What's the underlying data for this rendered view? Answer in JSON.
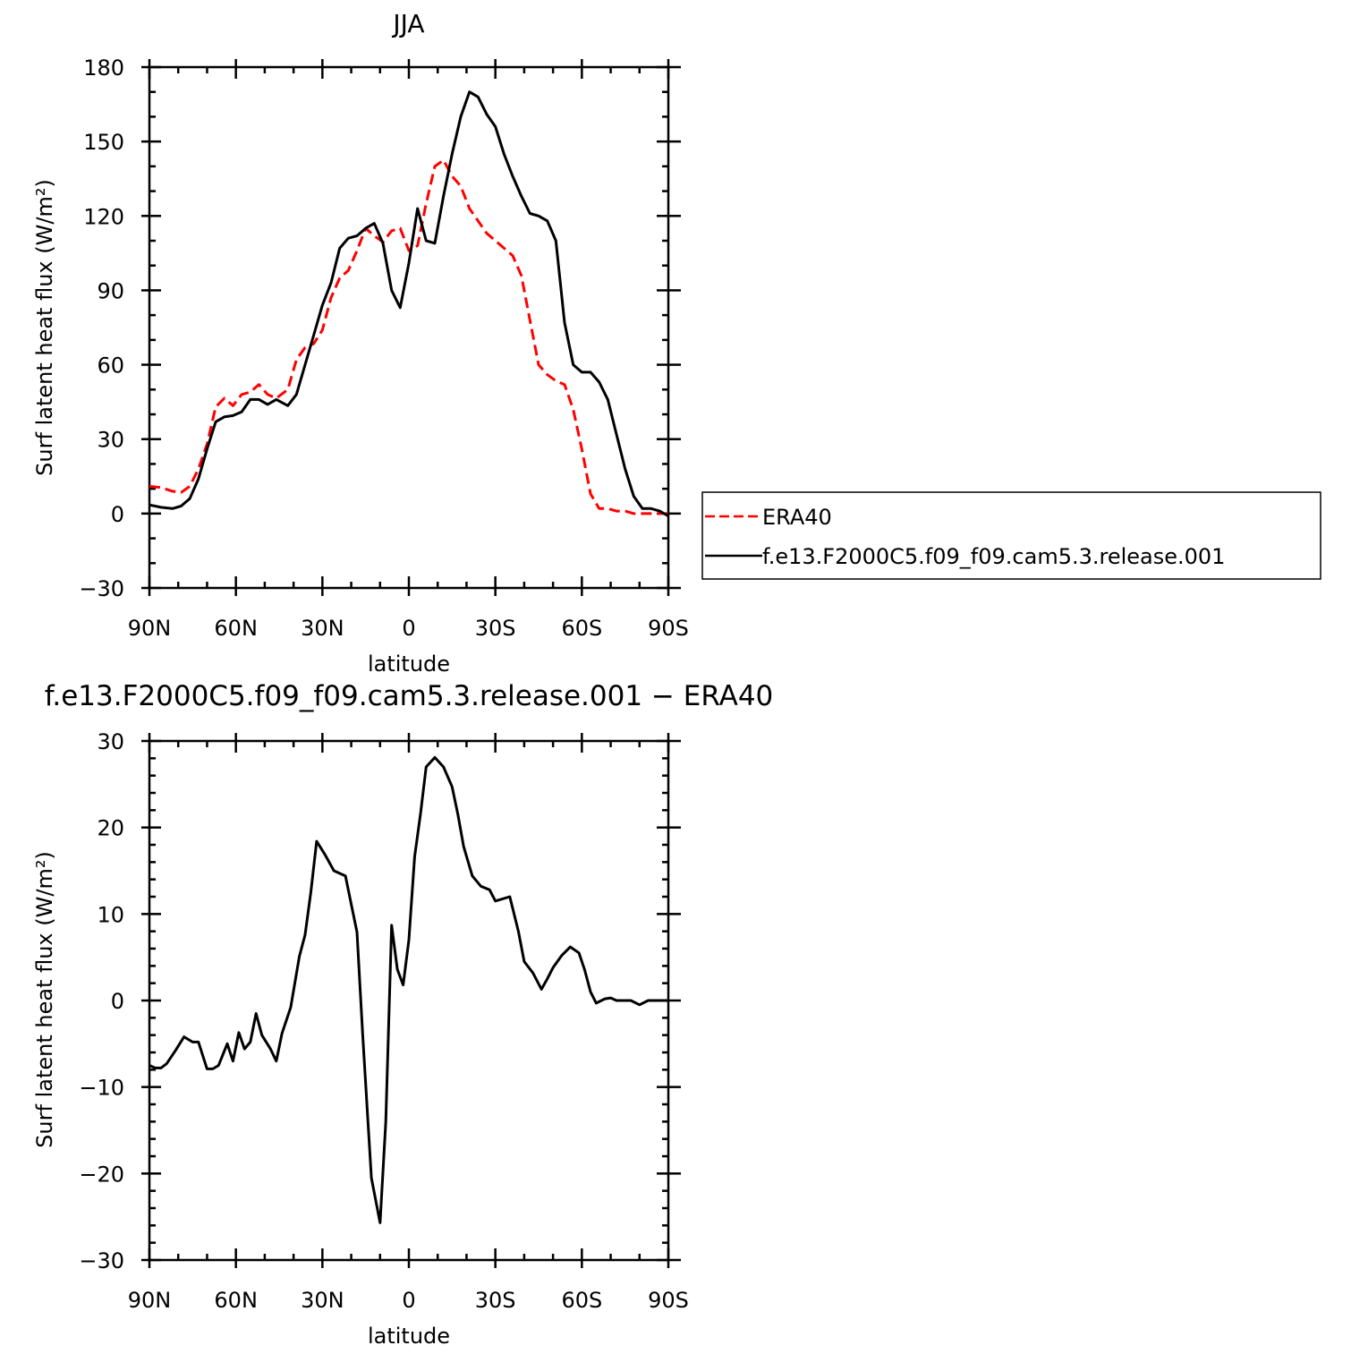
{
  "chart_data": [
    {
      "type": "line",
      "title": "JJA",
      "xlabel": "latitude",
      "ylabel": "Surf latent heat flux (W/m²)",
      "xlim": [
        90,
        -90
      ],
      "ylim": [
        -30,
        180
      ],
      "xticks": [
        90,
        60,
        30,
        0,
        -30,
        -60,
        -90
      ],
      "xtick_labels": [
        "90N",
        "60N",
        "30N",
        "0",
        "30S",
        "60S",
        "90S"
      ],
      "yticks": [
        -30,
        0,
        30,
        60,
        90,
        120,
        150,
        180
      ],
      "ytick_labels": [
        "−30",
        "0",
        "30",
        "60",
        "90",
        "120",
        "150",
        "180"
      ],
      "legend_position": "right",
      "series": [
        {
          "name": "ERA40",
          "color": "#ff0000",
          "dash": "dashed",
          "x": [
            90,
            86,
            82,
            79,
            76,
            73,
            70,
            67,
            64,
            61,
            58,
            55,
            52,
            49,
            46,
            42,
            39,
            36,
            33,
            30,
            27,
            24,
            21,
            18,
            15,
            12,
            9,
            6,
            3,
            0,
            -3,
            -6,
            -9,
            -12,
            -15,
            -18,
            -21,
            -24,
            -27,
            -30,
            -33,
            -36,
            -39,
            -42,
            -45,
            -48,
            -51,
            -54,
            -57,
            -60,
            -63,
            -66,
            -69,
            -72,
            -75,
            -78,
            -81,
            -84,
            -87,
            -90
          ],
          "y": [
            11,
            10.5,
            9,
            8.5,
            11,
            18,
            28,
            43,
            46.5,
            43.5,
            48,
            49,
            52,
            48,
            46.5,
            50,
            62,
            67,
            68.5,
            74,
            87,
            95,
            98,
            106,
            115,
            112,
            109.5,
            114,
            115,
            106,
            108,
            125,
            140,
            142.5,
            136,
            132,
            123,
            118,
            113,
            110,
            107,
            104,
            96,
            78,
            60,
            56,
            53.5,
            52,
            42,
            26,
            8,
            2,
            2,
            1,
            1,
            0,
            0,
            0,
            0,
            0
          ]
        },
        {
          "name": "f.e13.F2000C5.f09_f09.cam5.3.release.001",
          "color": "#000000",
          "dash": "solid",
          "x": [
            90,
            86,
            82,
            79,
            76,
            73,
            70,
            67,
            64,
            61,
            58,
            55,
            52,
            49,
            46,
            42,
            39,
            36,
            33,
            30,
            27,
            24,
            21,
            18,
            15,
            12,
            9,
            6,
            3,
            0,
            -3,
            -6,
            -9,
            -12,
            -15,
            -18,
            -21,
            -24,
            -27,
            -30,
            -33,
            -36,
            -39,
            -42,
            -45,
            -48,
            -51,
            -54,
            -57,
            -60,
            -63,
            -66,
            -69,
            -72,
            -75,
            -78,
            -81,
            -84,
            -87,
            -90
          ],
          "y": [
            3.5,
            2.5,
            2,
            3,
            6,
            14,
            26,
            37,
            39,
            39.5,
            41,
            46,
            46,
            44,
            46,
            43.5,
            48,
            60,
            72,
            84,
            93,
            107,
            111,
            112,
            115,
            117,
            109,
            90,
            83,
            101,
            123,
            110,
            109,
            128,
            145,
            160,
            170,
            168,
            161,
            156,
            145,
            136,
            128,
            121,
            120,
            118,
            110,
            77,
            60,
            57,
            57,
            53,
            46,
            32,
            18,
            7,
            2,
            2,
            1,
            -1
          ]
        }
      ]
    },
    {
      "type": "line",
      "title": "f.e13.F2000C5.f09_f09.cam5.3.release.001 − ERA40",
      "xlabel": "latitude",
      "ylabel": "Surf latent heat flux (W/m²)",
      "xlim": [
        90,
        -90
      ],
      "ylim": [
        -30,
        30
      ],
      "xticks": [
        90,
        60,
        30,
        0,
        -30,
        -60,
        -90
      ],
      "xtick_labels": [
        "90N",
        "60N",
        "30N",
        "0",
        "30S",
        "60S",
        "90S"
      ],
      "yticks": [
        -30,
        -20,
        -10,
        0,
        10,
        20,
        30
      ],
      "ytick_labels": [
        "−30",
        "−20",
        "−10",
        "0",
        "10",
        "20",
        "30"
      ],
      "series": [
        {
          "color": "#000000",
          "dash": "solid",
          "x": [
            90,
            88,
            86,
            84,
            81,
            78,
            75,
            73,
            70,
            68,
            66,
            63,
            61,
            59,
            57,
            55,
            53,
            51,
            48,
            46,
            44,
            41,
            38,
            36,
            34,
            32,
            29,
            26,
            22,
            18,
            16,
            13,
            10,
            8,
            6,
            4,
            2,
            0,
            -2,
            -4,
            -6,
            -9,
            -12,
            -15,
            -17,
            -19,
            -22,
            -25,
            -28,
            -30,
            -32,
            -35,
            -38,
            -40,
            -43,
            -46,
            -48,
            -50,
            -53,
            -56,
            -59,
            -61,
            -63,
            -65,
            -68,
            -70,
            -72,
            -74,
            -77,
            -80,
            -83,
            -85,
            -87,
            -89,
            -90
          ],
          "y": [
            -7.5,
            -7.8,
            -7.8,
            -7.3,
            -5.8,
            -4.2,
            -4.8,
            -4.8,
            -7.9,
            -7.9,
            -7.5,
            -5.0,
            -7.0,
            -3.7,
            -5.6,
            -4.8,
            -1.5,
            -4.0,
            -5.6,
            -7.0,
            -3.8,
            -0.8,
            5.1,
            7.6,
            12.5,
            18.4,
            16.8,
            15.0,
            14.4,
            7.9,
            -4.0,
            -20.5,
            -25.7,
            -14.0,
            8.7,
            3.6,
            1.8,
            7.0,
            16.6,
            21.5,
            27.0,
            28.1,
            27.0,
            24.7,
            21.5,
            17.8,
            14.4,
            13.2,
            12.8,
            11.5,
            11.7,
            12.0,
            8.0,
            4.5,
            3.2,
            1.3,
            2.5,
            3.8,
            5.2,
            6.2,
            5.5,
            3.5,
            1.0,
            -0.3,
            0.2,
            0.3,
            0,
            0,
            0,
            -0.5,
            0,
            0,
            0,
            0,
            0
          ]
        }
      ]
    }
  ]
}
